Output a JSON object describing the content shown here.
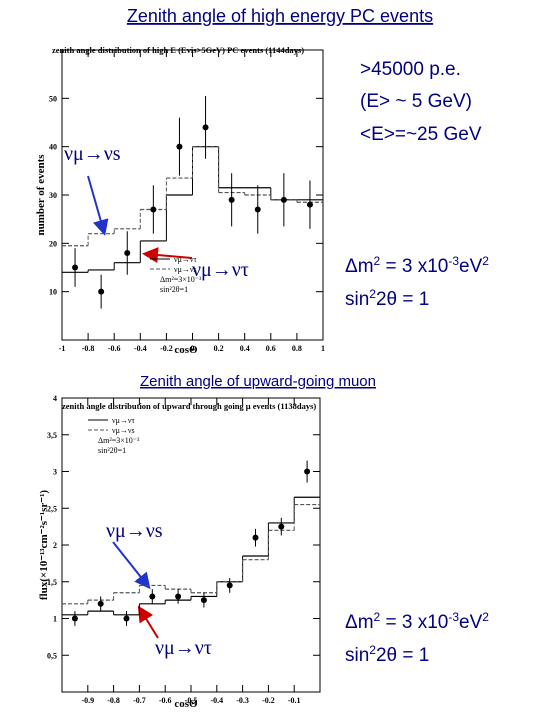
{
  "chart_data": [
    {
      "type": "histogram",
      "title": "Zenith angle of high energy PC events",
      "subtitle": "zenith angle distribution of high E (Evis>5GeV) PC events (1144days)",
      "x_label": "cosΘ",
      "y_label": "number of events",
      "xlim": [
        -1,
        1
      ],
      "xticks": [
        -1,
        -0.8,
        -0.6,
        -0.4,
        -0.2,
        0,
        0.2,
        0.4,
        0.6,
        0.8,
        1
      ],
      "ylim": [
        0,
        60
      ],
      "yticks": [
        10,
        20,
        30,
        40,
        50
      ],
      "bins": [
        -1,
        -0.8,
        -0.6,
        -0.4,
        -0.2,
        0,
        0.2,
        0.4,
        0.6,
        0.8,
        1
      ],
      "x": [
        -0.9,
        -0.7,
        -0.5,
        -0.3,
        -0.1,
        0.1,
        0.3,
        0.5,
        0.7,
        0.9
      ],
      "values": [
        15,
        10,
        18,
        27,
        40,
        44,
        29,
        27,
        29,
        28
      ],
      "errors": [
        4,
        3.5,
        4.5,
        5,
        6,
        6.5,
        5.5,
        5,
        5.5,
        5
      ],
      "color": "#000000",
      "series": [
        {
          "name": "νμ→ντ",
          "style": "solid",
          "color": "#000000",
          "values": [
            14,
            14.5,
            16,
            20.5,
            30,
            40,
            31.5,
            31.5,
            29,
            29
          ]
        },
        {
          "name": "νμ→νs",
          "style": "dashed",
          "color": "#555555",
          "values": [
            19.5,
            22,
            23,
            27,
            33.5,
            40,
            30.5,
            30,
            29,
            28.5
          ]
        }
      ],
      "legend_note": [
        "Δm²=3×10⁻³",
        "sin²2θ=1"
      ],
      "annotations": [
        [
          ">45000 p.e."
        ],
        [
          "(E> ~ 5 GeV)"
        ],
        [
          "<E>=~25 GeV"
        ],
        [
          "Δm",
          "2",
          " = 3 x10",
          "-3",
          "eV",
          "2"
        ],
        [
          "sin",
          "2",
          "2θ = 1"
        ],
        [
          "νμ→νs"
        ],
        [
          "νμ→ντ"
        ]
      ]
    },
    {
      "type": "histogram",
      "title": "Zenith  angle of upward-going muon",
      "subtitle": "zenith angle distribution of upward through going μ events (1138days)",
      "x_label": "cosΘ",
      "y_label": "flux(×10⁻¹³cm⁻²s⁻¹sr⁻¹)",
      "xlim": [
        -1,
        0
      ],
      "xticks": [
        -0.9,
        -0.8,
        -0.7,
        -0.6,
        -0.5,
        -0.4,
        -0.3,
        -0.2,
        -0.1
      ],
      "ylim": [
        0,
        4
      ],
      "yticks": [
        {
          "value": 0.5,
          "label": "0,5"
        },
        1,
        {
          "value": 1.5,
          "label": "1,5"
        },
        2,
        {
          "value": 2.5,
          "label": "2,5"
        },
        3,
        {
          "value": 3.5,
          "label": "3,5"
        },
        4
      ],
      "bins": [
        -1,
        -0.9,
        -0.8,
        -0.7,
        -0.6,
        -0.5,
        -0.4,
        -0.3,
        -0.2,
        -0.1,
        0
      ],
      "x": [
        -0.95,
        -0.85,
        -0.75,
        -0.65,
        -0.55,
        -0.45,
        -0.35,
        -0.25,
        -0.15,
        -0.05
      ],
      "values": [
        1.0,
        1.2,
        1.0,
        1.3,
        1.3,
        1.25,
        1.45,
        2.1,
        2.25,
        3.0
      ],
      "errors": [
        0.1,
        0.1,
        0.1,
        0.1,
        0.1,
        0.1,
        0.1,
        0.12,
        0.12,
        0.15
      ],
      "color": "#000000",
      "series": [
        {
          "name": "νμ→ντ",
          "style": "solid",
          "color": "#000000",
          "values": [
            1.05,
            1.1,
            1.05,
            1.2,
            1.25,
            1.3,
            1.5,
            1.85,
            2.3,
            2.65
          ]
        },
        {
          "name": "νμ→νs",
          "style": "dashed",
          "color": "#555555",
          "values": [
            1.2,
            1.25,
            1.35,
            1.45,
            1.4,
            1.35,
            1.5,
            1.8,
            2.2,
            2.55
          ]
        }
      ],
      "legend_note": [
        "Δm²=3×10⁻³",
        "sin²2θ=1"
      ],
      "annotations": [
        [
          "νμ→νs"
        ],
        [
          "νμ→ντ"
        ],
        [
          "Δm",
          "2",
          " = 3 x10",
          "-3",
          "eV",
          "2"
        ],
        [
          "sin",
          "2",
          "2θ = 1"
        ]
      ]
    }
  ]
}
